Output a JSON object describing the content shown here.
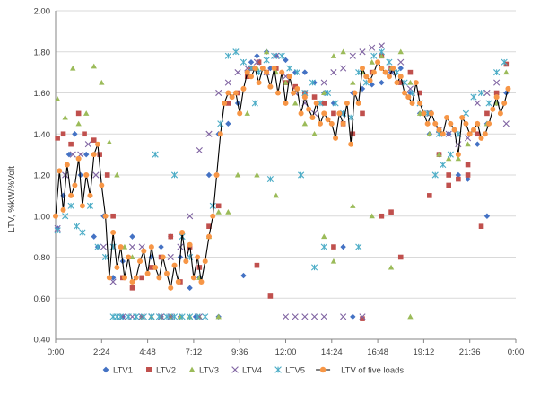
{
  "chart_data": {
    "type": "scatter",
    "title": "",
    "xlabel": "",
    "ylabel": "LTV, %kW/%Volt",
    "ylim": [
      0.4,
      2.0
    ],
    "ytick_step": 0.2,
    "ytick_labels": [
      "0.40",
      "0.60",
      "0.80",
      "1.00",
      "1.20",
      "1.40",
      "1.60",
      "1.80",
      "2.00"
    ],
    "xlim_hours": [
      0,
      24
    ],
    "xtick_labels": [
      "0:00",
      "2:24",
      "4:48",
      "7:12",
      "9:36",
      "12:00",
      "14:24",
      "16:48",
      "19:12",
      "21:36",
      "0:00"
    ],
    "grid": "horizontal",
    "legend_position": "bottom",
    "colors": {
      "LTV1": "#4472C4",
      "LTV2": "#C0504D",
      "LTV3": "#9BBB59",
      "LTV4": "#8064A2",
      "LTV5": "#4BACC6",
      "combined": "#F79646",
      "combined_line": "#000000",
      "grid": "#D9D9D9",
      "axis": "#868686"
    },
    "series": [
      {
        "name": "LTV1",
        "marker": "diamond",
        "x": [
          0.1,
          0.4,
          0.7,
          1.0,
          1.3,
          1.6,
          1.8,
          2.0,
          2.2,
          2.5,
          3.0,
          3.5,
          4.0,
          5.0,
          5.5,
          6.0,
          6.5,
          7.0,
          7.5,
          8.0,
          8.5,
          9.0,
          9.5,
          10.0,
          10.2,
          10.5,
          11.0,
          11.2,
          11.5,
          12.0,
          12.5,
          13.0,
          13.5,
          14.0,
          14.5,
          15.0,
          15.5,
          16.0,
          16.5,
          17.0,
          17.5,
          18.0,
          18.5,
          19.0,
          19.5,
          20.0,
          20.5,
          21.0,
          21.5,
          22.0,
          22.5,
          23.0,
          23.5,
          3.5,
          4.5,
          5.5,
          6.0,
          6.5,
          7.3,
          8.5,
          9.8,
          15.0,
          15.5,
          22.5
        ],
        "y": [
          0.94,
          1.1,
          1.3,
          1.4,
          1.2,
          1.3,
          1.1,
          0.9,
          0.85,
          1.0,
          0.7,
          0.78,
          0.9,
          0.8,
          0.85,
          0.9,
          0.8,
          0.65,
          0.7,
          1.2,
          1.4,
          1.45,
          1.55,
          1.7,
          1.75,
          1.78,
          1.8,
          1.72,
          1.78,
          1.76,
          1.7,
          1.7,
          1.65,
          1.6,
          1.55,
          1.5,
          1.6,
          1.62,
          1.64,
          1.65,
          1.7,
          1.72,
          1.6,
          1.5,
          1.4,
          1.3,
          1.4,
          1.2,
          1.18,
          1.35,
          1.0,
          1.55,
          1.6,
          0.51,
          0.51,
          0.51,
          0.51,
          0.51,
          0.51,
          0.51,
          0.71,
          0.85,
          0.51,
          1.45
        ]
      },
      {
        "name": "LTV2",
        "marker": "square",
        "x": [
          0.1,
          0.4,
          0.8,
          1.2,
          1.5,
          2.0,
          2.3,
          2.7,
          3.0,
          3.5,
          4.0,
          4.5,
          5.0,
          5.5,
          6.0,
          6.5,
          7.0,
          7.5,
          8.0,
          8.5,
          9.0,
          9.5,
          10.0,
          10.2,
          10.6,
          11.0,
          11.5,
          12.0,
          12.5,
          13.0,
          13.5,
          14.0,
          14.5,
          15.0,
          15.5,
          16.0,
          16.5,
          17.0,
          17.5,
          18.0,
          18.5,
          19.0,
          19.5,
          20.0,
          20.5,
          21.0,
          21.5,
          22.0,
          22.5,
          23.0,
          23.5,
          10.5,
          11.2,
          14.5,
          16.0,
          17.0,
          17.5,
          18.0,
          19.5,
          20.5,
          21.5,
          22.2
        ],
        "y": [
          1.38,
          1.4,
          1.35,
          1.5,
          1.4,
          1.37,
          1.3,
          1.2,
          1.0,
          0.7,
          0.65,
          0.7,
          0.75,
          0.8,
          0.9,
          0.68,
          0.85,
          0.75,
          0.95,
          1.05,
          1.55,
          1.6,
          1.68,
          1.72,
          1.75,
          1.7,
          1.72,
          1.65,
          1.63,
          1.6,
          1.58,
          1.55,
          1.5,
          1.45,
          1.4,
          1.5,
          1.7,
          1.78,
          1.72,
          1.65,
          1.7,
          1.6,
          1.5,
          1.3,
          1.2,
          1.18,
          1.25,
          1.4,
          1.5,
          1.6,
          1.74,
          0.76,
          0.61,
          0.85,
          0.5,
          1.0,
          1.02,
          0.8,
          1.1,
          1.15,
          1.2,
          0.95
        ]
      },
      {
        "name": "LTV3",
        "marker": "triangle",
        "x": [
          0.1,
          0.5,
          0.9,
          1.2,
          1.6,
          2.0,
          2.4,
          2.8,
          3.2,
          3.6,
          4.0,
          4.5,
          5.0,
          5.5,
          6.0,
          7.0,
          7.5,
          8.0,
          8.5,
          9.0,
          9.5,
          10.0,
          10.5,
          11.0,
          11.5,
          12.0,
          12.5,
          13.0,
          13.5,
          14.0,
          14.5,
          15.0,
          15.5,
          16.0,
          16.5,
          17.0,
          17.5,
          18.0,
          18.5,
          19.0,
          19.5,
          20.0,
          20.5,
          21.0,
          21.5,
          22.0,
          22.5,
          23.0,
          23.5,
          6.5,
          7.0,
          7.5,
          8.5,
          10.5,
          11.5,
          14.0,
          14.5,
          15.5,
          16.5,
          17.5,
          18.5
        ],
        "y": [
          1.57,
          1.48,
          1.72,
          1.45,
          1.5,
          1.73,
          1.65,
          1.36,
          1.2,
          0.85,
          0.8,
          0.51,
          0.51,
          0.51,
          0.51,
          0.51,
          0.7,
          0.9,
          1.02,
          1.02,
          1.2,
          1.5,
          1.72,
          1.8,
          1.7,
          1.65,
          1.55,
          1.45,
          1.4,
          1.6,
          1.78,
          1.8,
          1.65,
          1.7,
          1.75,
          1.78,
          1.72,
          1.8,
          1.65,
          1.5,
          1.4,
          1.3,
          1.28,
          1.28,
          1.35,
          1.45,
          1.45,
          1.55,
          1.7,
          0.51,
          0.51,
          0.51,
          0.51,
          1.2,
          1.1,
          0.9,
          0.78,
          1.05,
          1.0,
          0.75,
          0.51
        ]
      },
      {
        "name": "LTV4",
        "marker": "x",
        "x": [
          0.1,
          0.5,
          0.9,
          1.3,
          1.7,
          2.1,
          2.5,
          3.0,
          3.5,
          4.0,
          4.5,
          5.0,
          5.5,
          6.0,
          6.5,
          7.0,
          7.5,
          8.0,
          8.5,
          9.0,
          9.5,
          10.0,
          10.5,
          11.0,
          11.5,
          12.0,
          12.5,
          13.0,
          13.5,
          14.0,
          14.5,
          15.0,
          15.5,
          16.0,
          16.5,
          17.0,
          17.5,
          18.0,
          18.5,
          19.0,
          19.5,
          20.0,
          20.5,
          21.0,
          21.5,
          22.0,
          22.5,
          23.0,
          23.5,
          12.0,
          12.5,
          13.0,
          13.5,
          14.0,
          15.0,
          16.0,
          7.5,
          5.0,
          5.5,
          6.0,
          4.5,
          4.0
        ],
        "y": [
          0.94,
          1.2,
          1.3,
          1.3,
          1.35,
          1.2,
          0.85,
          0.68,
          0.51,
          0.51,
          0.51,
          0.51,
          0.51,
          0.8,
          0.85,
          1.0,
          1.32,
          1.4,
          1.6,
          1.65,
          1.7,
          1.72,
          1.75,
          1.7,
          1.78,
          1.68,
          1.6,
          1.55,
          1.5,
          1.65,
          1.7,
          1.72,
          1.78,
          1.8,
          1.82,
          1.83,
          1.7,
          1.75,
          1.62,
          1.55,
          1.5,
          1.42,
          1.4,
          1.35,
          1.38,
          1.55,
          1.6,
          1.65,
          1.45,
          0.51,
          0.51,
          0.51,
          0.51,
          0.51,
          0.51,
          0.51,
          0.51,
          0.51,
          0.51,
          0.51,
          0.85,
          0.85
        ]
      },
      {
        "name": "LTV5",
        "marker": "asterisk",
        "x": [
          0.1,
          0.5,
          0.8,
          1.1,
          1.4,
          1.8,
          2.2,
          2.6,
          3.0,
          3.4,
          3.8,
          4.2,
          4.6,
          5.0,
          5.4,
          5.8,
          6.2,
          6.6,
          7.0,
          7.4,
          7.8,
          8.2,
          8.6,
          9.0,
          9.4,
          9.8,
          10.2,
          10.6,
          11.0,
          11.4,
          11.8,
          12.2,
          12.6,
          13.0,
          13.4,
          13.8,
          14.2,
          14.6,
          15.0,
          15.4,
          15.8,
          16.2,
          16.6,
          17.0,
          17.4,
          17.8,
          18.2,
          18.6,
          19.0,
          19.4,
          19.8,
          20.2,
          20.6,
          21.0,
          21.4,
          21.8,
          22.2,
          22.6,
          23.0,
          23.4,
          3.0,
          3.2,
          4.2,
          5.0,
          5.2,
          6.2,
          6.6,
          7.0,
          14.0,
          15.8,
          13.5,
          12.8,
          11.2,
          10.4,
          20.0
        ],
        "y": [
          0.93,
          1.0,
          1.05,
          0.95,
          0.92,
          1.05,
          0.85,
          0.8,
          0.85,
          0.51,
          0.51,
          0.51,
          0.51,
          0.51,
          0.51,
          0.51,
          0.51,
          0.51,
          0.51,
          0.51,
          0.51,
          1.05,
          1.45,
          1.78,
          1.8,
          1.75,
          1.72,
          1.7,
          1.76,
          1.78,
          1.78,
          1.72,
          1.7,
          1.6,
          1.65,
          1.55,
          1.6,
          1.55,
          1.5,
          1.48,
          1.7,
          1.65,
          1.78,
          1.8,
          1.75,
          1.7,
          1.65,
          1.6,
          1.55,
          1.5,
          1.2,
          1.25,
          1.3,
          1.4,
          1.5,
          1.58,
          1.6,
          1.55,
          1.7,
          1.75,
          0.51,
          0.51,
          0.51,
          0.51,
          1.3,
          1.2,
          0.9,
          0.8,
          0.85,
          0.85,
          0.75,
          1.2,
          1.18,
          1.55,
          1.4
        ]
      },
      {
        "name": "LTV of five loads",
        "marker": "circle",
        "connect": true,
        "x": [
          0.0,
          0.2,
          0.4,
          0.6,
          0.8,
          1.0,
          1.2,
          1.4,
          1.6,
          1.8,
          2.0,
          2.2,
          2.4,
          2.6,
          2.8,
          3.0,
          3.2,
          3.4,
          3.6,
          3.8,
          4.0,
          4.2,
          4.4,
          4.6,
          4.8,
          5.0,
          5.2,
          5.4,
          5.6,
          5.8,
          6.0,
          6.2,
          6.4,
          6.6,
          6.8,
          7.0,
          7.2,
          7.4,
          7.6,
          7.8,
          8.0,
          8.2,
          8.4,
          8.6,
          8.8,
          9.0,
          9.2,
          9.4,
          9.6,
          9.8,
          10.0,
          10.2,
          10.4,
          10.6,
          10.8,
          11.0,
          11.2,
          11.4,
          11.6,
          11.8,
          12.0,
          12.2,
          12.4,
          12.6,
          12.8,
          13.0,
          13.2,
          13.4,
          13.6,
          13.8,
          14.0,
          14.2,
          14.4,
          14.6,
          14.8,
          15.0,
          15.2,
          15.4,
          15.6,
          15.8,
          16.0,
          16.2,
          16.4,
          16.6,
          16.8,
          17.0,
          17.2,
          17.4,
          17.6,
          17.8,
          18.0,
          18.2,
          18.4,
          18.6,
          18.8,
          19.0,
          19.2,
          19.4,
          19.6,
          19.8,
          20.0,
          20.2,
          20.4,
          20.6,
          20.8,
          21.0,
          21.2,
          21.4,
          21.6,
          21.8,
          22.0,
          22.2,
          22.4,
          22.6,
          22.8,
          23.0,
          23.2,
          23.4,
          23.6
        ],
        "y": [
          1.0,
          1.22,
          1.03,
          1.25,
          1.1,
          1.15,
          1.28,
          1.05,
          1.2,
          1.1,
          1.3,
          1.35,
          1.15,
          1.0,
          0.7,
          0.92,
          0.75,
          0.85,
          0.7,
          0.8,
          0.68,
          0.7,
          0.78,
          0.83,
          0.72,
          0.85,
          0.75,
          0.7,
          0.8,
          0.72,
          0.65,
          0.76,
          0.68,
          0.92,
          0.78,
          0.86,
          0.7,
          0.8,
          0.68,
          0.78,
          0.9,
          1.0,
          1.2,
          1.4,
          1.55,
          1.6,
          1.58,
          1.6,
          1.5,
          1.62,
          1.7,
          1.68,
          1.72,
          1.65,
          1.72,
          1.7,
          1.63,
          1.72,
          1.6,
          1.7,
          1.55,
          1.68,
          1.6,
          1.62,
          1.5,
          1.58,
          1.52,
          1.48,
          1.55,
          1.45,
          1.5,
          1.47,
          1.45,
          1.38,
          1.5,
          1.45,
          1.55,
          1.35,
          1.6,
          1.55,
          1.72,
          1.68,
          1.66,
          1.7,
          1.75,
          1.72,
          1.7,
          1.68,
          1.72,
          1.65,
          1.68,
          1.6,
          1.58,
          1.55,
          1.65,
          1.55,
          1.5,
          1.45,
          1.5,
          1.45,
          1.42,
          1.4,
          1.48,
          1.45,
          1.42,
          1.3,
          1.48,
          1.45,
          1.4,
          1.42,
          1.45,
          1.38,
          1.4,
          1.45,
          1.52,
          1.58,
          1.5,
          1.55,
          1.62
        ]
      }
    ]
  }
}
